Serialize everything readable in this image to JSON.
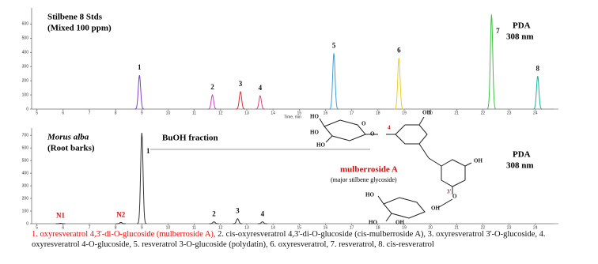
{
  "chart_data": [
    {
      "type": "line",
      "title": "Stilbene 8 Stds",
      "subtitle": "(Mixed 100 ppm)",
      "detector": [
        "PDA",
        "308 nm"
      ],
      "x_label": "Time, min",
      "xlim": [
        4.8,
        24.7
      ],
      "xticks": [
        5,
        6,
        7,
        8,
        9,
        10,
        11,
        12,
        13,
        14,
        15,
        16,
        17,
        18,
        19,
        20,
        21,
        22,
        23,
        24
      ],
      "ylim": [
        0,
        680
      ],
      "yticks": [
        0,
        100,
        200,
        300,
        400,
        500,
        600
      ],
      "peaks": [
        {
          "label": "1",
          "x": 8.91,
          "height": 239,
          "color": "#7b3fd0"
        },
        {
          "label": "2",
          "x": 11.69,
          "height": 100,
          "color": "#d040c0"
        },
        {
          "label": "3",
          "x": 12.76,
          "height": 122,
          "color": "#e03030"
        },
        {
          "label": "4",
          "x": 13.51,
          "height": 94,
          "color": "#e04070"
        },
        {
          "label": "5",
          "x": 16.32,
          "height": 394,
          "color": "#3aa0e0"
        },
        {
          "label": "6",
          "x": 18.8,
          "height": 361,
          "color": "#e8d020"
        },
        {
          "label": "7",
          "x": 22.33,
          "height": 667,
          "color": "#40c040"
        },
        {
          "label": "8",
          "x": 24.09,
          "height": 233,
          "color": "#20b0a0"
        }
      ]
    },
    {
      "type": "line",
      "title": "Morus alba",
      "subtitle": "(Root barks)",
      "fraction": "BuOH fraction",
      "detector": [
        "PDA",
        "308 nm"
      ],
      "x_label": "Time, min",
      "xlim": [
        4.8,
        24.7
      ],
      "xticks": [
        5,
        6,
        7,
        8,
        9,
        10,
        11,
        12,
        13,
        14,
        15,
        16,
        17,
        18,
        19,
        20,
        21,
        22,
        23,
        24
      ],
      "ylim": [
        0,
        720
      ],
      "yticks": [
        0,
        100,
        200,
        300,
        400,
        500,
        600,
        700
      ],
      "peaks": [
        {
          "label": "N1",
          "x": 5.9,
          "height": 3,
          "color": "#333333",
          "label_color": "#d11111"
        },
        {
          "label": "N2",
          "x": 8.2,
          "height": 10,
          "color": "#333333",
          "label_color": "#d11111"
        },
        {
          "label": "1",
          "x": 9.0,
          "height": 720,
          "color": "#333333"
        },
        {
          "label": "2",
          "x": 11.75,
          "height": 15,
          "color": "#333333"
        },
        {
          "label": "3",
          "x": 12.65,
          "height": 40,
          "color": "#333333"
        },
        {
          "label": "4",
          "x": 13.6,
          "height": 15,
          "color": "#333333"
        }
      ]
    }
  ],
  "structure": {
    "labels": [
      "HO",
      "HO",
      "HO",
      "O",
      "O",
      "4",
      "OH",
      "OH",
      "3'",
      "O",
      "HO",
      "HO",
      "OH",
      "OH"
    ],
    "name": "mulberroside A",
    "note": "(major stilbene glycoside)"
  },
  "caption": [
    "1. oxyresveratrol 4,3'-di-O-glucoside (mulberroside A),",
    "2. cis-oxyresveratrol 4,3'-di-O-glucoside (cis-mulberroside A),",
    "3. oxyresveratrol 3'-O-glucoside,",
    "4. oxyresveratrol 4-O-glucoside,",
    "5. resveratrol 3-O-glucoside (polydatin),",
    "6. oxyresveratrol,",
    "7. resveratrol,",
    "8. cis-resveratrol"
  ]
}
